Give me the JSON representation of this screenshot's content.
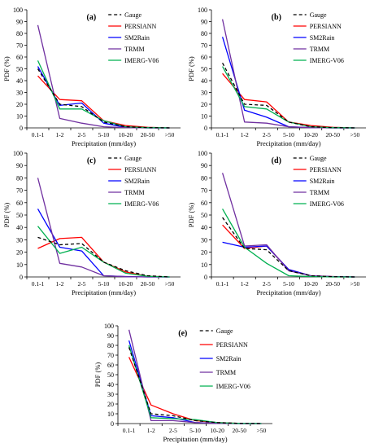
{
  "chart_data": [
    {
      "type": "line",
      "panel_label": "(a)",
      "categories": [
        "0.1-1",
        "1-2",
        "2-5",
        "5-10",
        "10-20",
        "20-50",
        ">50"
      ],
      "ylabel": "PDF (%)",
      "xlabel": "Precipitation (mm/day)",
      "ylim": [
        0,
        100
      ],
      "yticks": [
        0,
        10,
        20,
        30,
        40,
        50,
        60,
        70,
        80,
        90,
        100
      ],
      "legend_position": "top-right",
      "series": [
        {
          "name": "Gauge",
          "color": "#000000",
          "dash": true,
          "values": [
            50,
            20,
            18,
            5,
            1,
            0.2,
            0
          ]
        },
        {
          "name": "PERSIANN",
          "color": "#ff0000",
          "dash": false,
          "values": [
            44,
            24,
            23,
            6,
            2,
            0.5,
            0
          ]
        },
        {
          "name": "SM2Rain",
          "color": "#0000ff",
          "dash": false,
          "values": [
            52,
            19,
            21,
            4,
            0.5,
            0,
            0
          ]
        },
        {
          "name": "TRMM",
          "color": "#7030a0",
          "dash": false,
          "values": [
            87,
            8,
            4,
            1,
            0.3,
            0,
            0
          ]
        },
        {
          "name": "IMERG-V06",
          "color": "#00b050",
          "dash": false,
          "values": [
            57,
            16,
            16,
            6,
            1,
            0.2,
            0
          ]
        }
      ]
    },
    {
      "type": "line",
      "panel_label": "(b)",
      "categories": [
        "0.1-1",
        "1-2",
        "2-5",
        "5-10",
        "10-20",
        "20-50",
        ">50"
      ],
      "ylabel": "PDF (%)",
      "xlabel": "Precipitation (mm/day)",
      "ylim": [
        0,
        100
      ],
      "yticks": [
        0,
        10,
        20,
        30,
        40,
        50,
        60,
        70,
        80,
        90,
        100
      ],
      "legend_position": "top-right",
      "series": [
        {
          "name": "Gauge",
          "color": "#000000",
          "dash": true,
          "values": [
            55,
            20,
            19,
            5,
            1,
            0.2,
            0
          ]
        },
        {
          "name": "PERSIANN",
          "color": "#ff0000",
          "dash": false,
          "values": [
            46,
            24,
            22,
            5,
            2,
            0.5,
            0
          ]
        },
        {
          "name": "SM2Rain",
          "color": "#0000ff",
          "dash": false,
          "values": [
            77,
            15,
            9,
            1,
            0.3,
            0,
            0
          ]
        },
        {
          "name": "TRMM",
          "color": "#7030a0",
          "dash": false,
          "values": [
            92,
            5,
            4,
            1,
            0.2,
            0,
            0
          ]
        },
        {
          "name": "IMERG-V06",
          "color": "#00b050",
          "dash": false,
          "values": [
            52,
            18,
            16,
            5,
            1,
            0.2,
            0
          ]
        }
      ]
    },
    {
      "type": "line",
      "panel_label": "(c)",
      "categories": [
        "0.1-1",
        "1-2",
        "2-5",
        "5-10",
        "10-20",
        "20-50",
        ">50"
      ],
      "ylabel": "PDF (%)",
      "xlabel": "Precipitation (mm/day)",
      "ylim": [
        0,
        100
      ],
      "yticks": [
        0,
        10,
        20,
        30,
        40,
        50,
        60,
        70,
        80,
        90,
        100
      ],
      "legend_position": "top-right",
      "series": [
        {
          "name": "Gauge",
          "color": "#000000",
          "dash": true,
          "values": [
            32,
            26,
            27,
            12,
            5,
            1,
            0
          ]
        },
        {
          "name": "PERSIANN",
          "color": "#ff0000",
          "dash": false,
          "values": [
            23,
            31,
            32,
            12,
            4,
            0.5,
            0
          ]
        },
        {
          "name": "SM2Rain",
          "color": "#0000ff",
          "dash": false,
          "values": [
            55,
            24,
            21,
            1,
            0.3,
            0,
            0
          ]
        },
        {
          "name": "TRMM",
          "color": "#7030a0",
          "dash": false,
          "values": [
            80,
            11,
            8,
            1,
            0.2,
            0,
            0
          ]
        },
        {
          "name": "IMERG-V06",
          "color": "#00b050",
          "dash": false,
          "values": [
            41,
            19,
            24,
            12,
            3,
            0.5,
            0
          ]
        }
      ]
    },
    {
      "type": "line",
      "panel_label": "(d)",
      "categories": [
        "0.1-1",
        "1-2",
        "2-5",
        "5-10",
        "10-20",
        "20-50",
        ">50"
      ],
      "ylabel": "PDF (%)",
      "xlabel": "Precipitation (mm/day)",
      "ylim": [
        0,
        100
      ],
      "yticks": [
        0,
        10,
        20,
        30,
        40,
        50,
        60,
        70,
        80,
        90,
        100
      ],
      "legend_position": "top-right",
      "series": [
        {
          "name": "Gauge",
          "color": "#000000",
          "dash": true,
          "values": [
            48,
            23,
            22,
            5,
            1,
            0.2,
            0
          ]
        },
        {
          "name": "PERSIANN",
          "color": "#ff0000",
          "dash": false,
          "values": [
            42,
            23,
            25,
            6,
            1,
            0.3,
            0
          ]
        },
        {
          "name": "SM2Rain",
          "color": "#0000ff",
          "dash": false,
          "values": [
            28,
            24,
            25,
            6,
            1,
            0.2,
            0
          ]
        },
        {
          "name": "TRMM",
          "color": "#7030a0",
          "dash": false,
          "values": [
            84,
            25,
            26,
            5,
            1,
            0.2,
            0
          ]
        },
        {
          "name": "IMERG-V06",
          "color": "#00b050",
          "dash": false,
          "values": [
            55,
            24,
            11,
            1,
            0.3,
            0,
            0
          ]
        }
      ]
    },
    {
      "type": "line",
      "panel_label": "(e)",
      "categories": [
        "0.1-1",
        "1-2",
        "2-5",
        "5-10",
        "10-20",
        "20-50",
        ">50"
      ],
      "ylabel": "PDF (%)",
      "xlabel": "Precipitation (mm/day)",
      "ylim": [
        0,
        100
      ],
      "yticks": [
        0,
        10,
        20,
        30,
        40,
        50,
        60,
        70,
        80,
        90,
        100
      ],
      "legend_position": "top-right",
      "series": [
        {
          "name": "Gauge",
          "color": "#000000",
          "dash": true,
          "values": [
            78,
            10,
            8,
            3,
            1,
            0.2,
            0
          ]
        },
        {
          "name": "PERSIANN",
          "color": "#ff0000",
          "dash": false,
          "values": [
            68,
            19,
            10,
            3,
            1,
            0.2,
            0
          ]
        },
        {
          "name": "SM2Rain",
          "color": "#0000ff",
          "dash": false,
          "values": [
            85,
            8,
            6,
            1,
            0.3,
            0,
            0
          ]
        },
        {
          "name": "TRMM",
          "color": "#7030a0",
          "dash": false,
          "values": [
            96,
            3,
            3,
            1,
            0.2,
            0,
            0
          ]
        },
        {
          "name": "IMERG-V06",
          "color": "#00b050",
          "dash": false,
          "values": [
            80,
            6,
            5,
            4,
            1,
            0.2,
            0
          ]
        }
      ]
    }
  ]
}
